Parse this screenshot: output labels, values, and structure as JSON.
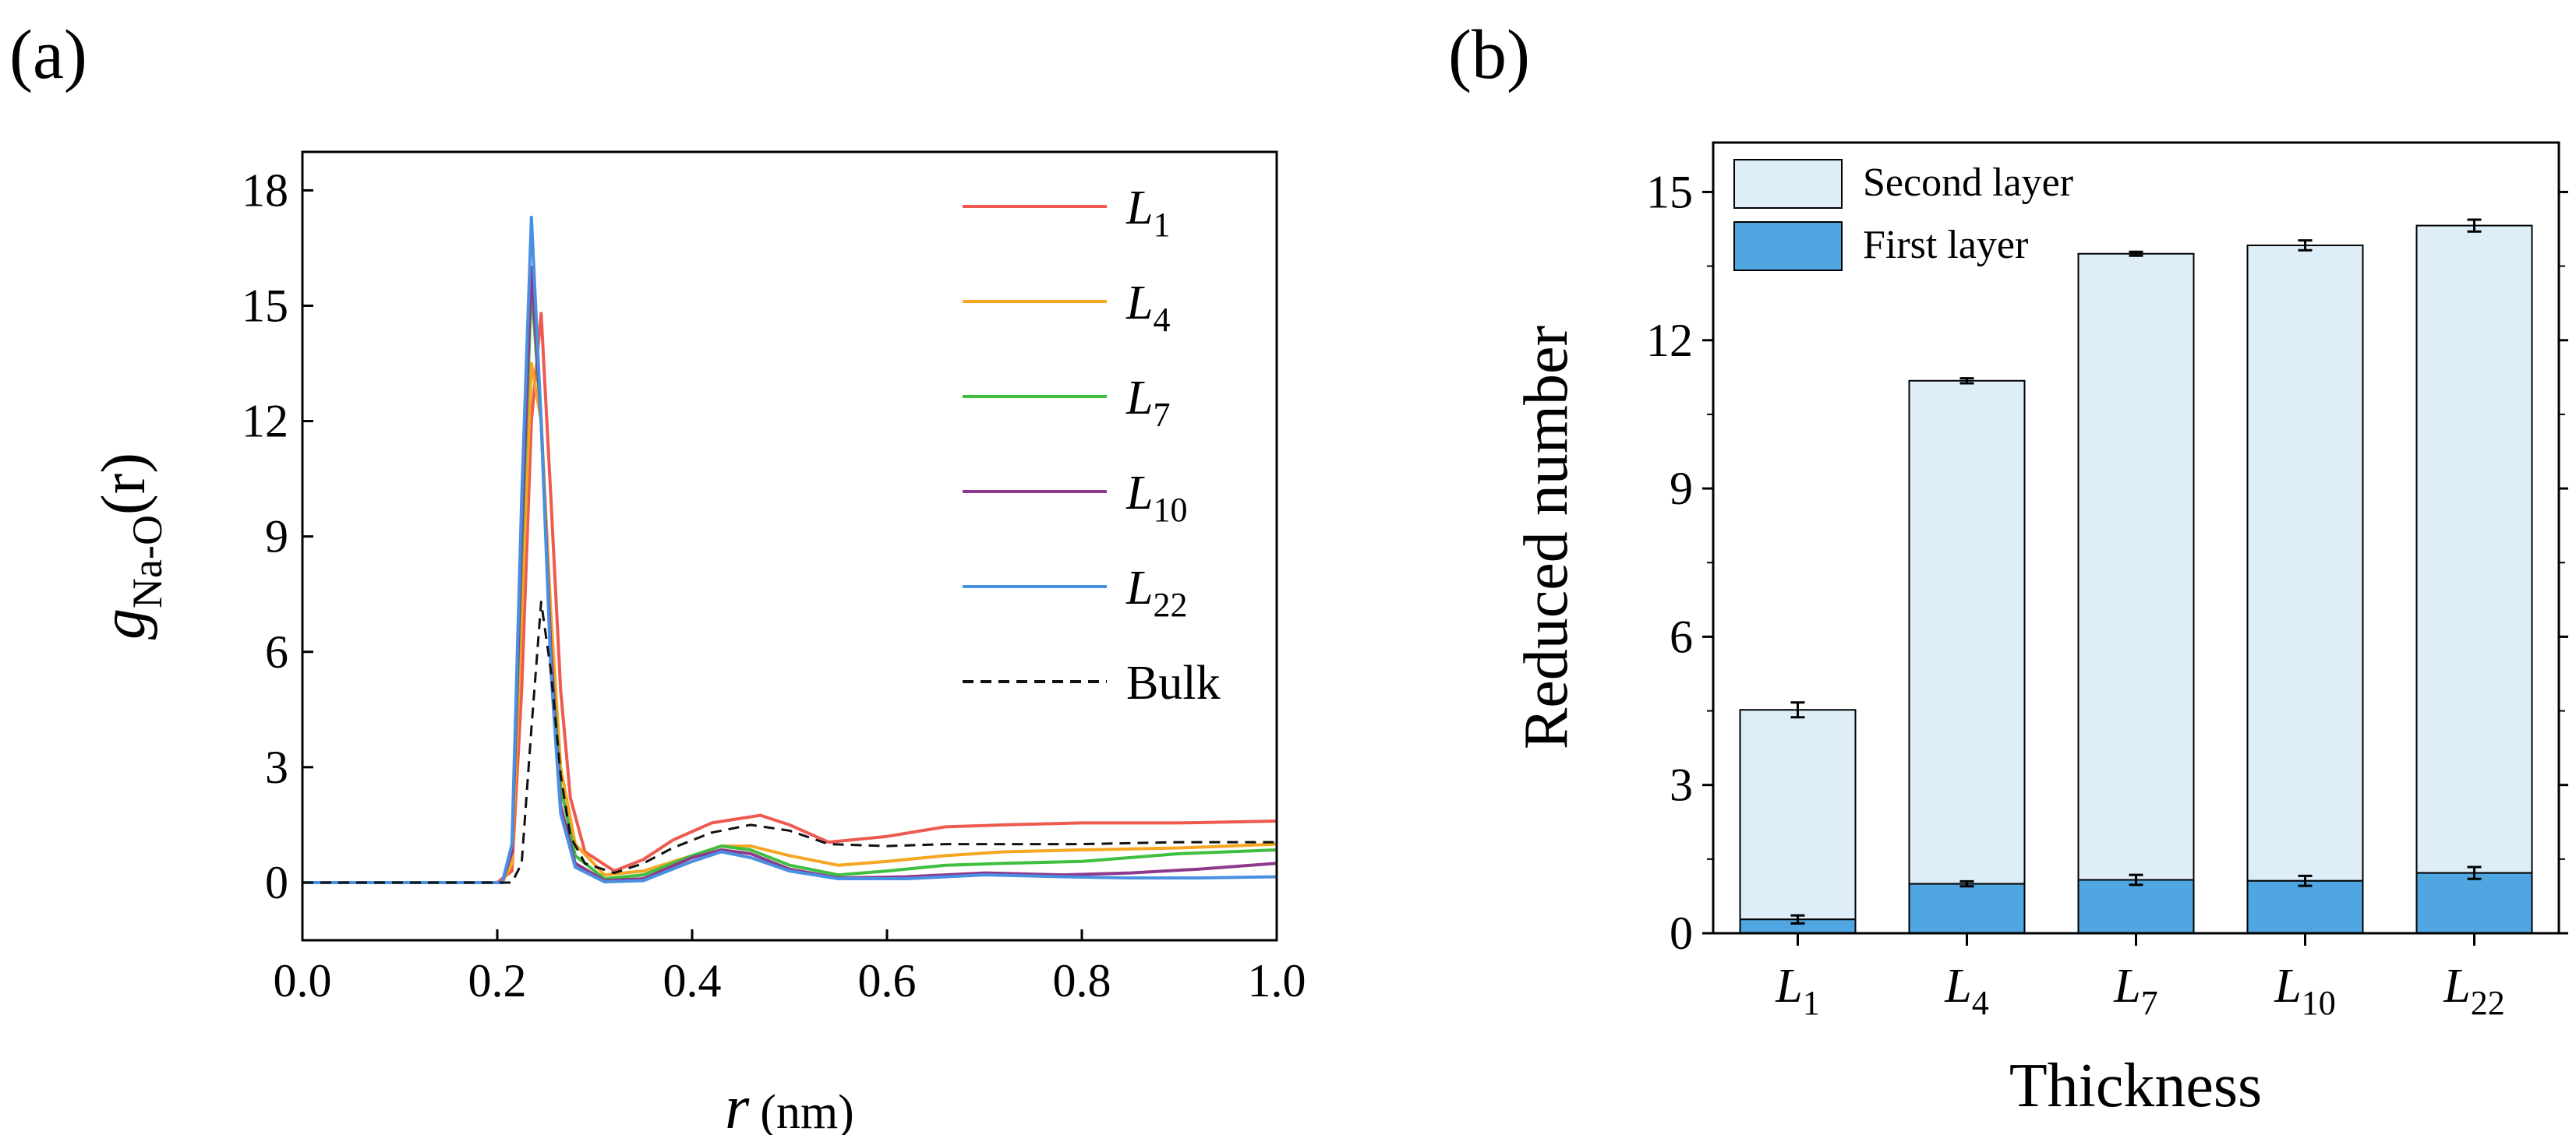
{
  "chart_data": [
    {
      "panel": "(a)",
      "type": "line",
      "ylabel": {
        "main": "g",
        "sub": "Na-O",
        "tail": "(r)"
      },
      "xlabel": {
        "main": "r",
        "unit": "(nm)"
      },
      "xlim": [
        0,
        1.0
      ],
      "ylim": [
        -1.5,
        19.0
      ],
      "xticks": [
        0.0,
        0.2,
        0.4,
        0.6,
        0.8,
        1.0
      ],
      "xtick_labels": [
        "0.0",
        "0.2",
        "0.4",
        "0.6",
        "0.8",
        "1.0"
      ],
      "yticks": [
        0,
        3,
        6,
        9,
        12,
        15,
        18
      ],
      "ytick_labels": [
        "0",
        "3",
        "6",
        "9",
        "12",
        "15",
        "18"
      ],
      "legend_position": "top-right",
      "series": [
        {
          "name": "L",
          "sub": "1",
          "color": "#ee5a4f",
          "dash": false,
          "points": [
            [
              0,
              0
            ],
            [
              0.2,
              0
            ],
            [
              0.215,
              0.3
            ],
            [
              0.225,
              5
            ],
            [
              0.235,
              12
            ],
            [
              0.245,
              14.8
            ],
            [
              0.255,
              10
            ],
            [
              0.265,
              5
            ],
            [
              0.275,
              2.2
            ],
            [
              0.29,
              0.8
            ],
            [
              0.32,
              0.3
            ],
            [
              0.35,
              0.6
            ],
            [
              0.38,
              1.1
            ],
            [
              0.42,
              1.55
            ],
            [
              0.47,
              1.75
            ],
            [
              0.5,
              1.5
            ],
            [
              0.54,
              1.05
            ],
            [
              0.6,
              1.2
            ],
            [
              0.66,
              1.45
            ],
            [
              0.72,
              1.5
            ],
            [
              0.8,
              1.55
            ],
            [
              0.9,
              1.55
            ],
            [
              1.0,
              1.6
            ]
          ]
        },
        {
          "name": "L",
          "sub": "4",
          "color": "#f5a623",
          "dash": false,
          "points": [
            [
              0,
              0
            ],
            [
              0.205,
              0
            ],
            [
              0.215,
              0.5
            ],
            [
              0.225,
              7
            ],
            [
              0.235,
              13.5
            ],
            [
              0.245,
              12
            ],
            [
              0.255,
              7
            ],
            [
              0.265,
              3
            ],
            [
              0.28,
              1
            ],
            [
              0.31,
              0.2
            ],
            [
              0.35,
              0.3
            ],
            [
              0.4,
              0.7
            ],
            [
              0.43,
              0.95
            ],
            [
              0.46,
              0.95
            ],
            [
              0.5,
              0.7
            ],
            [
              0.55,
              0.45
            ],
            [
              0.6,
              0.55
            ],
            [
              0.66,
              0.7
            ],
            [
              0.72,
              0.8
            ],
            [
              0.8,
              0.85
            ],
            [
              0.9,
              0.9
            ],
            [
              1.0,
              1.0
            ]
          ]
        },
        {
          "name": "L",
          "sub": "7",
          "color": "#3fbf3f",
          "dash": false,
          "points": [
            [
              0,
              0
            ],
            [
              0.205,
              0
            ],
            [
              0.215,
              0.8
            ],
            [
              0.225,
              8.5
            ],
            [
              0.235,
              15.5
            ],
            [
              0.245,
              12
            ],
            [
              0.255,
              6
            ],
            [
              0.265,
              2.5
            ],
            [
              0.28,
              0.7
            ],
            [
              0.31,
              0.1
            ],
            [
              0.35,
              0.2
            ],
            [
              0.4,
              0.7
            ],
            [
              0.43,
              0.95
            ],
            [
              0.46,
              0.85
            ],
            [
              0.5,
              0.45
            ],
            [
              0.55,
              0.2
            ],
            [
              0.6,
              0.3
            ],
            [
              0.66,
              0.45
            ],
            [
              0.72,
              0.5
            ],
            [
              0.8,
              0.55
            ],
            [
              0.9,
              0.75
            ],
            [
              1.0,
              0.85
            ]
          ]
        },
        {
          "name": "L",
          "sub": "10",
          "color": "#8e3a8c",
          "dash": false,
          "points": [
            [
              0,
              0
            ],
            [
              0.205,
              0
            ],
            [
              0.215,
              0.8
            ],
            [
              0.225,
              9
            ],
            [
              0.235,
              16
            ],
            [
              0.245,
              12
            ],
            [
              0.255,
              6
            ],
            [
              0.265,
              2
            ],
            [
              0.28,
              0.5
            ],
            [
              0.31,
              0.05
            ],
            [
              0.35,
              0.1
            ],
            [
              0.4,
              0.65
            ],
            [
              0.43,
              0.85
            ],
            [
              0.46,
              0.75
            ],
            [
              0.5,
              0.35
            ],
            [
              0.55,
              0.12
            ],
            [
              0.62,
              0.15
            ],
            [
              0.7,
              0.25
            ],
            [
              0.78,
              0.2
            ],
            [
              0.85,
              0.25
            ],
            [
              0.92,
              0.35
            ],
            [
              1.0,
              0.5
            ]
          ]
        },
        {
          "name": "L",
          "sub": "22",
          "color": "#4a90e2",
          "dash": false,
          "points": [
            [
              0,
              0
            ],
            [
              0.205,
              0
            ],
            [
              0.215,
              1
            ],
            [
              0.225,
              10
            ],
            [
              0.235,
              17.3
            ],
            [
              0.245,
              12
            ],
            [
              0.255,
              5.5
            ],
            [
              0.265,
              1.8
            ],
            [
              0.28,
              0.4
            ],
            [
              0.31,
              0.02
            ],
            [
              0.35,
              0.05
            ],
            [
              0.4,
              0.55
            ],
            [
              0.43,
              0.8
            ],
            [
              0.46,
              0.65
            ],
            [
              0.5,
              0.3
            ],
            [
              0.55,
              0.1
            ],
            [
              0.62,
              0.1
            ],
            [
              0.7,
              0.2
            ],
            [
              0.78,
              0.15
            ],
            [
              0.85,
              0.12
            ],
            [
              0.92,
              0.12
            ],
            [
              1.0,
              0.15
            ]
          ]
        },
        {
          "name": "Bulk",
          "sub": "",
          "color": "#111111",
          "dash": true,
          "points": [
            [
              0,
              0
            ],
            [
              0.215,
              0
            ],
            [
              0.225,
              0.5
            ],
            [
              0.235,
              4
            ],
            [
              0.245,
              7.3
            ],
            [
              0.255,
              5.5
            ],
            [
              0.265,
              2.8
            ],
            [
              0.275,
              1.2
            ],
            [
              0.29,
              0.5
            ],
            [
              0.32,
              0.25
            ],
            [
              0.35,
              0.5
            ],
            [
              0.38,
              0.9
            ],
            [
              0.42,
              1.3
            ],
            [
              0.46,
              1.5
            ],
            [
              0.5,
              1.35
            ],
            [
              0.54,
              1.0
            ],
            [
              0.6,
              0.95
            ],
            [
              0.66,
              1.0
            ],
            [
              0.72,
              1.0
            ],
            [
              0.8,
              1.0
            ],
            [
              0.9,
              1.05
            ],
            [
              1.0,
              1.05
            ]
          ]
        }
      ]
    },
    {
      "panel": "(b)",
      "type": "bar",
      "stacked": true,
      "ylabel": "Reduced number",
      "xlabel": "Thickness",
      "ylim": [
        0,
        16.0
      ],
      "yticks": [
        0,
        3,
        6,
        9,
        12,
        15
      ],
      "ytick_labels": [
        "0",
        "3",
        "6",
        "9",
        "12",
        "15"
      ],
      "categories": [
        {
          "main": "L",
          "sub": "1"
        },
        {
          "main": "L",
          "sub": "4"
        },
        {
          "main": "L",
          "sub": "7"
        },
        {
          "main": "L",
          "sub": "10"
        },
        {
          "main": "L",
          "sub": "22"
        }
      ],
      "legend_position": "top-left",
      "series": [
        {
          "name": "First layer",
          "color": "#4fa6e0",
          "values": [
            0.28,
            1.0,
            1.08,
            1.06,
            1.22
          ],
          "errors": [
            0.08,
            0.05,
            0.1,
            0.1,
            0.12
          ]
        },
        {
          "name": "Second layer",
          "color": "#deeef8",
          "totals": [
            4.52,
            11.18,
            13.75,
            13.92,
            14.32
          ],
          "errors": [
            0.15,
            0.05,
            0.04,
            0.1,
            0.12
          ]
        }
      ]
    }
  ]
}
